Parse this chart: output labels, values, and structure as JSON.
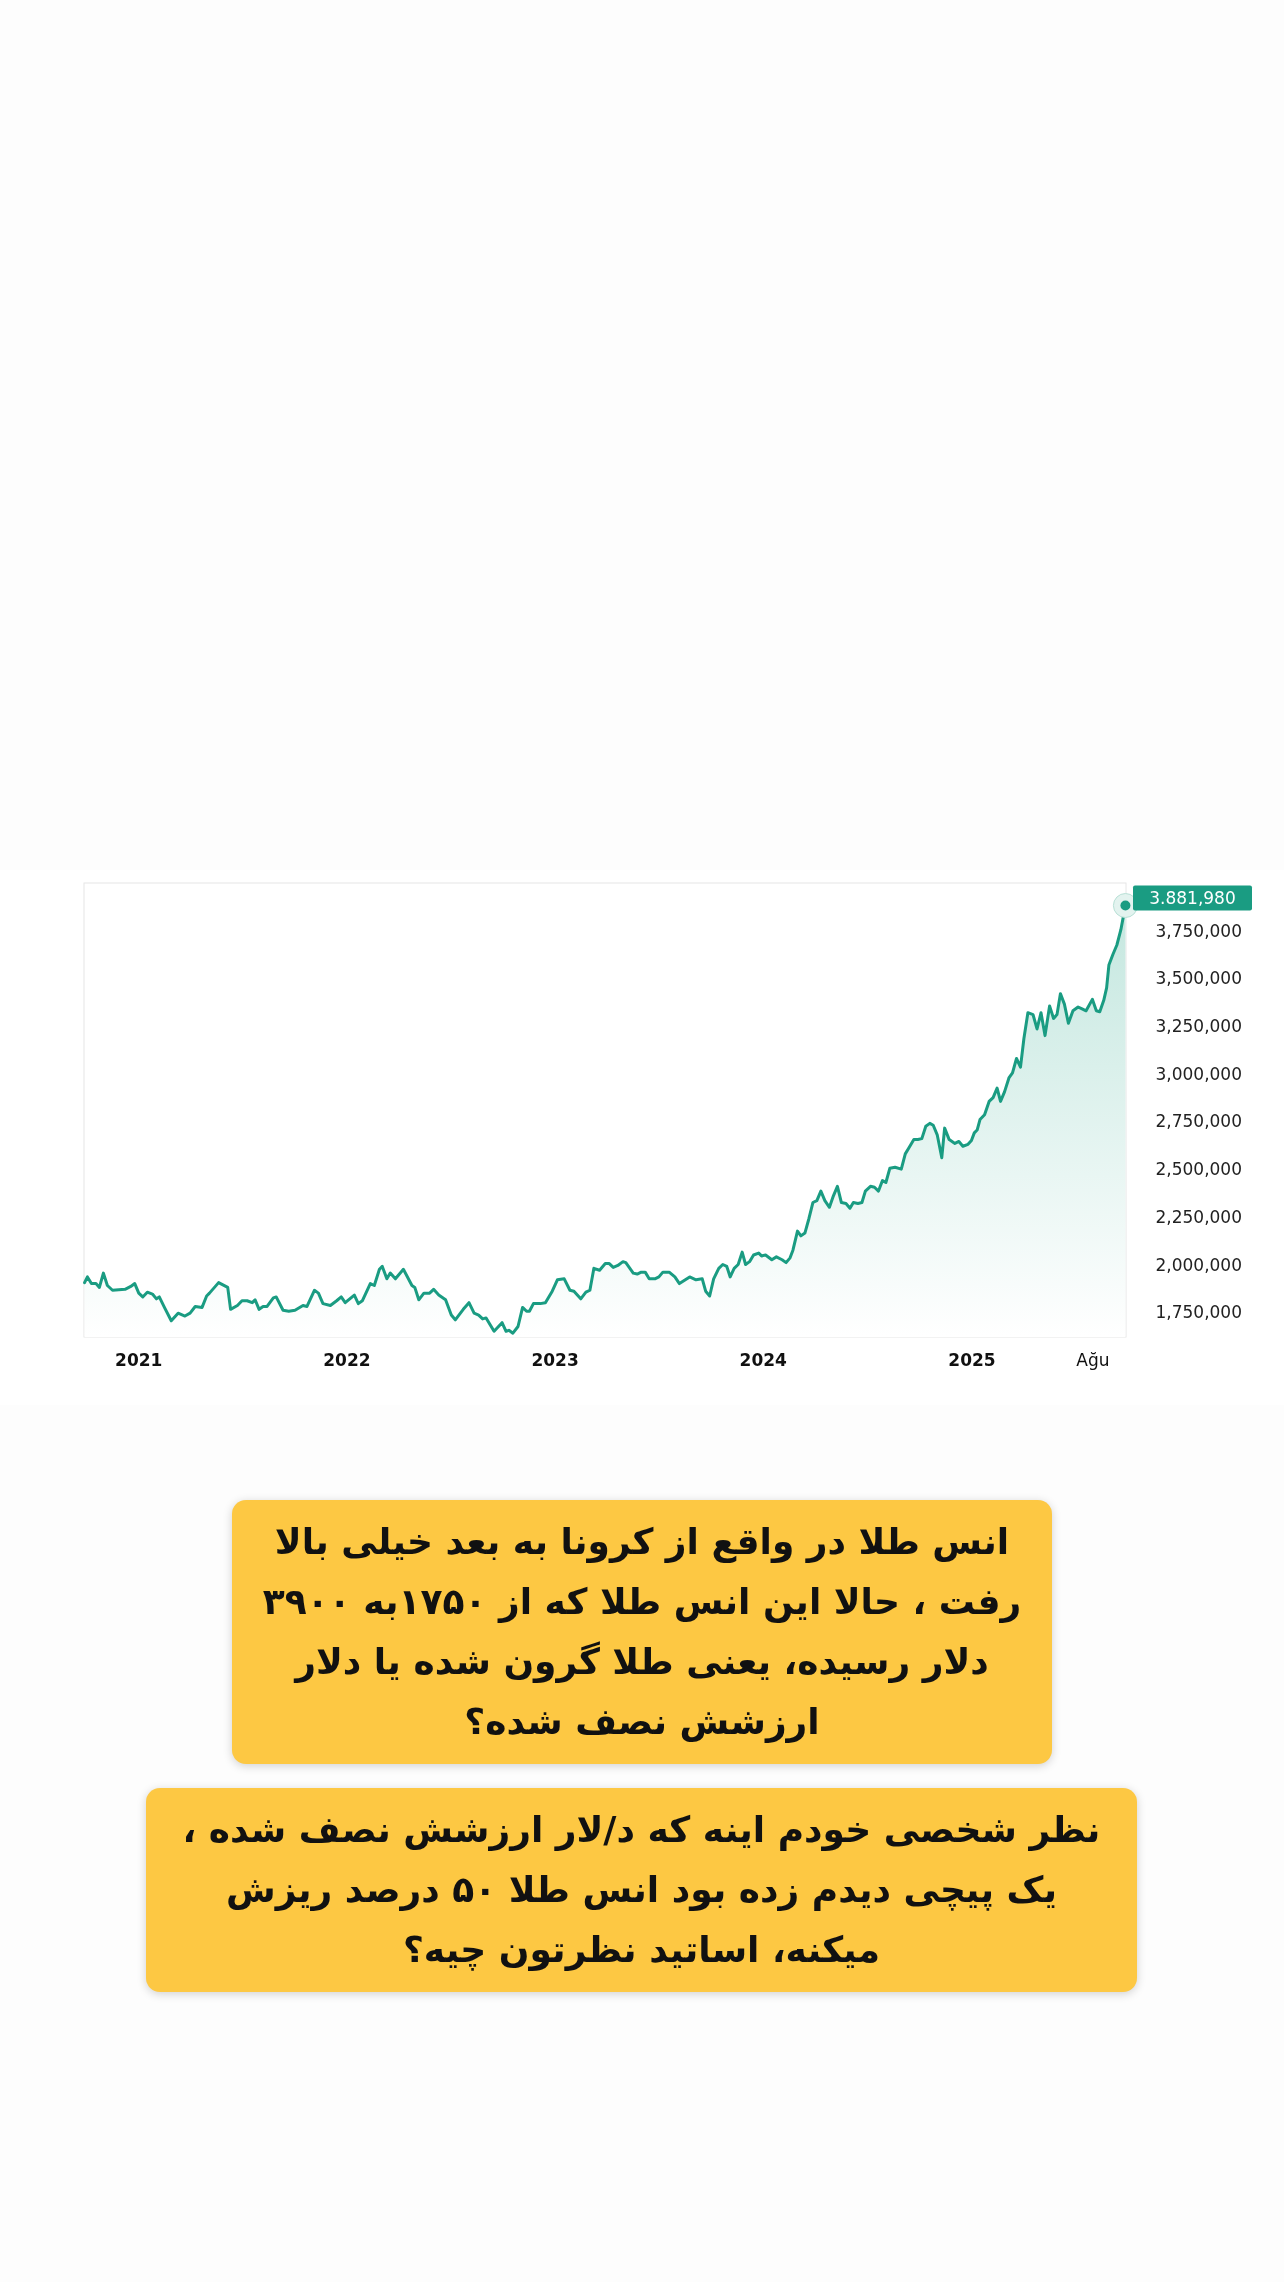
{
  "chart_data": {
    "type": "area",
    "color": "#1a9c82",
    "x": [
      "2020-09-28",
      "2020-10-03",
      "2020-10-10",
      "2020-10-18",
      "2020-10-24",
      "2020-10-31",
      "2020-11-07",
      "2020-11-16",
      "2020-12-08",
      "2020-12-18",
      "2020-12-25",
      "2021-01-01",
      "2021-01-08",
      "2021-01-16",
      "2021-01-25",
      "2021-02-01",
      "2021-02-06",
      "2021-02-15",
      "2021-02-27",
      "2021-03-11",
      "2021-03-23",
      "2021-04-01",
      "2021-04-10",
      "2021-04-22",
      "2021-04-30",
      "2021-05-05",
      "2021-05-21",
      "2021-06-06",
      "2021-06-11",
      "2021-06-23",
      "2021-07-01",
      "2021-07-10",
      "2021-07-19",
      "2021-07-24",
      "2021-07-31",
      "2021-08-07",
      "2021-08-14",
      "2021-08-25",
      "2021-08-30",
      "2021-09-11",
      "2021-09-21",
      "2021-10-02",
      "2021-10-16",
      "2021-10-23",
      "2021-11-05",
      "2021-11-12",
      "2021-11-20",
      "2021-12-03",
      "2021-12-14",
      "2021-12-22",
      "2021-12-29",
      "2022-01-14",
      "2022-01-21",
      "2022-01-28",
      "2022-02-11",
      "2022-02-18",
      "2022-02-27",
      "2022-03-04",
      "2022-03-12",
      "2022-03-18",
      "2022-03-27",
      "2022-04-10",
      "2022-04-25",
      "2022-04-30",
      "2022-05-07",
      "2022-05-16",
      "2022-05-26",
      "2022-06-02",
      "2022-06-11",
      "2022-06-23",
      "2022-07-03",
      "2022-07-10",
      "2022-07-24",
      "2022-08-03",
      "2022-08-12",
      "2022-08-20",
      "2022-08-27",
      "2022-09-02",
      "2022-09-16",
      "2022-09-30",
      "2022-10-07",
      "2022-10-12",
      "2022-10-19",
      "2022-10-28",
      "2022-11-05",
      "2022-11-12",
      "2022-11-17",
      "2022-11-24",
      "2022-12-06",
      "2022-12-15",
      "2022-12-27",
      "2023-01-05",
      "2023-01-17",
      "2023-01-27",
      "2023-02-03",
      "2023-02-15",
      "2023-02-24",
      "2023-03-03",
      "2023-03-10",
      "2023-03-20",
      "2023-03-30",
      "2023-04-06",
      "2023-04-13",
      "2023-04-21",
      "2023-04-30",
      "2023-05-05",
      "2023-05-18",
      "2023-05-25",
      "2023-06-01",
      "2023-06-08",
      "2023-06-15",
      "2023-06-25",
      "2023-07-02",
      "2023-07-09",
      "2023-07-20",
      "2023-07-30",
      "2023-08-07",
      "2023-08-25",
      "2023-09-05",
      "2023-09-16",
      "2023-09-22",
      "2023-09-29",
      "2023-10-06",
      "2023-10-15",
      "2023-10-22",
      "2023-10-29",
      "2023-11-04",
      "2023-11-11",
      "2023-11-18",
      "2023-11-25",
      "2023-12-01",
      "2023-12-08",
      "2023-12-15",
      "2023-12-24",
      "2023-12-29",
      "2024-01-05",
      "2024-01-16",
      "2024-01-24",
      "2024-02-03",
      "2024-02-10",
      "2024-02-17",
      "2024-02-22",
      "2024-03-01",
      "2024-03-07",
      "2024-03-14",
      "2024-03-21",
      "2024-03-28",
      "2024-04-04",
      "2024-04-11",
      "2024-04-18",
      "2024-04-26",
      "2024-05-03",
      "2024-05-10",
      "2024-05-17",
      "2024-05-25",
      "2024-06-01",
      "2024-06-07",
      "2024-06-15",
      "2024-06-22",
      "2024-06-28",
      "2024-07-07",
      "2024-07-14",
      "2024-07-21",
      "2024-07-28",
      "2024-08-03",
      "2024-08-10",
      "2024-08-19",
      "2024-08-30",
      "2024-09-06",
      "2024-09-13",
      "2024-09-21",
      "2024-09-28",
      "2024-10-05",
      "2024-10-12",
      "2024-10-19",
      "2024-10-25",
      "2024-11-01",
      "2024-11-09",
      "2024-11-14",
      "2024-11-22",
      "2024-12-02",
      "2024-12-09",
      "2024-12-16",
      "2024-12-25",
      "2024-12-31",
      "2025-01-05",
      "2025-01-10",
      "2025-01-15",
      "2025-01-23",
      "2025-01-31",
      "2025-02-07",
      "2025-02-14",
      "2025-02-20",
      "2025-02-27",
      "2025-03-07",
      "2025-03-13",
      "2025-03-20",
      "2025-03-27",
      "2025-04-02",
      "2025-04-09",
      "2025-04-18",
      "2025-04-25",
      "2025-05-02",
      "2025-05-09",
      "2025-05-17",
      "2025-05-24",
      "2025-05-30",
      "2025-06-05",
      "2025-06-12",
      "2025-06-19",
      "2025-06-27",
      "2025-07-06",
      "2025-07-13",
      "2025-07-20",
      "2025-07-31",
      "2025-08-07",
      "2025-08-13",
      "2025-08-20",
      "2025-08-25",
      "2025-08-29",
      "2025-09-05",
      "2025-09-12",
      "2025-09-19",
      "2025-09-27"
    ],
    "values": [
      1905000,
      1935000,
      1900000,
      1900000,
      1880000,
      1955000,
      1890000,
      1865000,
      1870000,
      1885000,
      1900000,
      1850000,
      1830000,
      1855000,
      1845000,
      1820000,
      1830000,
      1775000,
      1705000,
      1745000,
      1730000,
      1745000,
      1780000,
      1775000,
      1835000,
      1850000,
      1905000,
      1880000,
      1765000,
      1785000,
      1810000,
      1810000,
      1800000,
      1815000,
      1765000,
      1780000,
      1780000,
      1825000,
      1830000,
      1760000,
      1755000,
      1760000,
      1785000,
      1780000,
      1865000,
      1850000,
      1795000,
      1785000,
      1810000,
      1830000,
      1800000,
      1840000,
      1795000,
      1810000,
      1900000,
      1890000,
      1975000,
      1990000,
      1925000,
      1955000,
      1925000,
      1975000,
      1890000,
      1880000,
      1815000,
      1850000,
      1850000,
      1870000,
      1840000,
      1815000,
      1735000,
      1710000,
      1765000,
      1800000,
      1745000,
      1735000,
      1715000,
      1720000,
      1650000,
      1695000,
      1650000,
      1655000,
      1640000,
      1675000,
      1775000,
      1755000,
      1755000,
      1795000,
      1795000,
      1800000,
      1860000,
      1920000,
      1925000,
      1865000,
      1860000,
      1820000,
      1855000,
      1865000,
      1980000,
      1970000,
      2005000,
      2005000,
      1985000,
      1995000,
      2015000,
      2010000,
      1955000,
      1950000,
      1960000,
      1960000,
      1925000,
      1925000,
      1935000,
      1960000,
      1960000,
      1935000,
      1900000,
      1935000,
      1920000,
      1925000,
      1860000,
      1835000,
      1925000,
      1980000,
      2000000,
      1990000,
      1935000,
      1980000,
      2000000,
      2065000,
      2000000,
      2015000,
      2050000,
      2060000,
      2045000,
      2050000,
      2025000,
      2040000,
      2025000,
      2010000,
      2035000,
      2075000,
      2175000,
      2150000,
      2165000,
      2240000,
      2325000,
      2335000,
      2385000,
      2335000,
      2300000,
      2360000,
      2410000,
      2325000,
      2320000,
      2295000,
      2325000,
      2320000,
      2325000,
      2385000,
      2410000,
      2405000,
      2385000,
      2440000,
      2430000,
      2505000,
      2510000,
      2500000,
      2580000,
      2615000,
      2655000,
      2655000,
      2660000,
      2725000,
      2740000,
      2730000,
      2680000,
      2560000,
      2715000,
      2655000,
      2635000,
      2645000,
      2620000,
      2630000,
      2650000,
      2690000,
      2705000,
      2760000,
      2785000,
      2855000,
      2875000,
      2925000,
      2855000,
      2905000,
      2980000,
      3005000,
      3080000,
      3035000,
      3185000,
      3320000,
      3310000,
      3235000,
      3320000,
      3200000,
      3355000,
      3290000,
      3310000,
      3420000,
      3365000,
      3265000,
      3330000,
      3350000,
      3340000,
      3330000,
      3390000,
      3330000,
      3325000,
      3385000,
      3450000,
      3570000,
      3625000,
      3675000,
      3755000,
      3881980
    ],
    "xlim": [
      "2020-09-27",
      "2025-09-28"
    ],
    "ylim": [
      1620000,
      4000000
    ],
    "xticks": [
      {
        "value": "2021-01-01",
        "label": "2021"
      },
      {
        "value": "2022-01-01",
        "label": "2022"
      },
      {
        "value": "2023-01-01",
        "label": "2023"
      },
      {
        "value": "2024-01-01",
        "label": "2024"
      },
      {
        "value": "2025-01-01",
        "label": "2025"
      },
      {
        "value": "2025-08-01",
        "label": "Ağu"
      }
    ],
    "yticks": [
      {
        "value": 1750000,
        "label": "1,750,000"
      },
      {
        "value": 2000000,
        "label": "2,000,000"
      },
      {
        "value": 2250000,
        "label": "2,250,000"
      },
      {
        "value": 2500000,
        "label": "2,500,000"
      },
      {
        "value": 2750000,
        "label": "2,750,000"
      },
      {
        "value": 3000000,
        "label": "3,000,000"
      },
      {
        "value": 3250000,
        "label": "3,250,000"
      },
      {
        "value": 3500000,
        "label": "3,500,000"
      },
      {
        "value": 3750000,
        "label": "3,750,000"
      }
    ],
    "annotations": [
      {
        "text": "3.881,980",
        "x": "2025-09-27",
        "y": 3881980
      },
      "انس طلا در واقع از کرونا به بعد خیلی بالا رفت ، حالا این انس طلا که از ۱۷۵۰به ۳۹۰۰ دلار رسیده، یعنی طلا گرون شده یا دلار ارزشش نصف شده؟",
      "نظر شخصی خودم اینه که د/لار ارزشش نصف شده ، یک پیچی دیدم زده بود انس طلا ۵۰ درصد ریزش میکنه، اساتید نظرتون چیه؟"
    ]
  }
}
